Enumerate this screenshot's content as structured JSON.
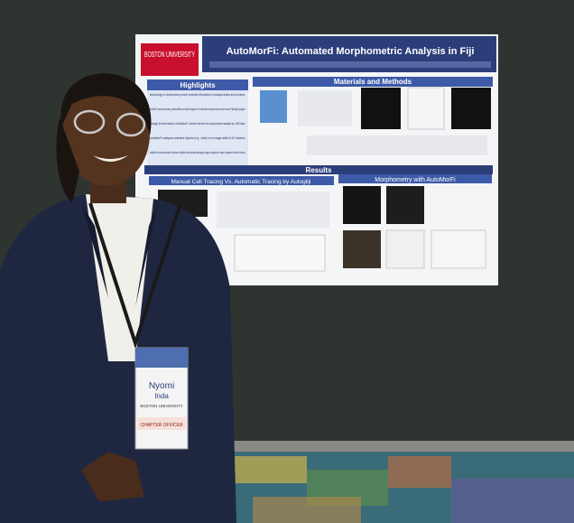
{
  "poster": {
    "logo": "BOSTON UNIVERSITY",
    "title": "AutoMorFi: Automated Morphometric Analysis in Fiji",
    "sections": {
      "highlights": "Highlights",
      "methods": "Materials and Methods",
      "results": "Results",
      "tracing": "Manual Cell Tracing Vs. Automatic Tracing by Autogliji",
      "morphometry": "Morphometry with AutoMorFi"
    },
    "highlights": [
      "Morphology or morphometry provide essential information to biological states and functions.",
      "AutoMorFi achieves accuracy, reproducibility, and high throughput in morphometric analysis using the open source Fiji/ImageJ program.",
      "Autogliji, the first iteration of AutoMorFi, reduced the time for morphometric analysis by >300 folds.",
      "AutoMorFi analyzes unlimited objects (e.g., cells) in an image within 5-10 minutes.",
      "AutoMorFi has been customized for fluorescent, brightfield, and underwater photography images, and applied to a range of organisms from flies to humans."
    ]
  },
  "badge": {
    "first_name": "Nyomi",
    "last_name": "Inda",
    "affiliation": "BOSTON UNIVERSITY",
    "role": "CHAPTER OFFICER"
  }
}
